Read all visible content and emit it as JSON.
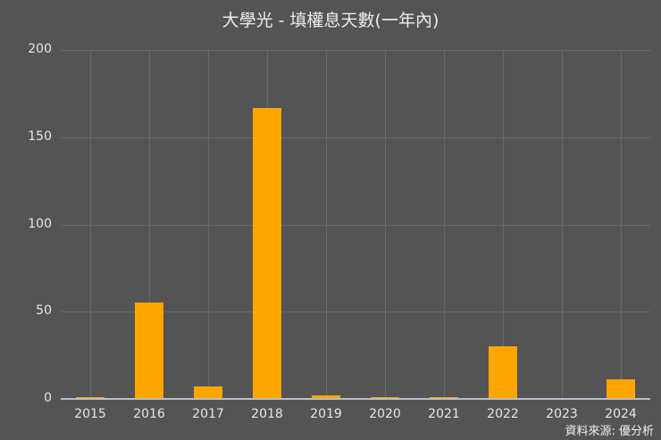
{
  "chart_data": {
    "type": "bar",
    "title": "大學光 - 填權息天數(一年內)",
    "xlabel": "",
    "ylabel": "",
    "categories": [
      "2015",
      "2016",
      "2017",
      "2018",
      "2019",
      "2020",
      "2021",
      "2022",
      "2023",
      "2024"
    ],
    "values": [
      1,
      55,
      7,
      167,
      2,
      1,
      1,
      30,
      0,
      11
    ],
    "ylim": [
      0,
      200
    ],
    "yticks": [
      "0",
      "50",
      "100",
      "150",
      "200"
    ],
    "grid": true,
    "legend": "none",
    "bar_color": "#ffa500",
    "background": "#545454",
    "source": "資料來源: 優分析"
  }
}
